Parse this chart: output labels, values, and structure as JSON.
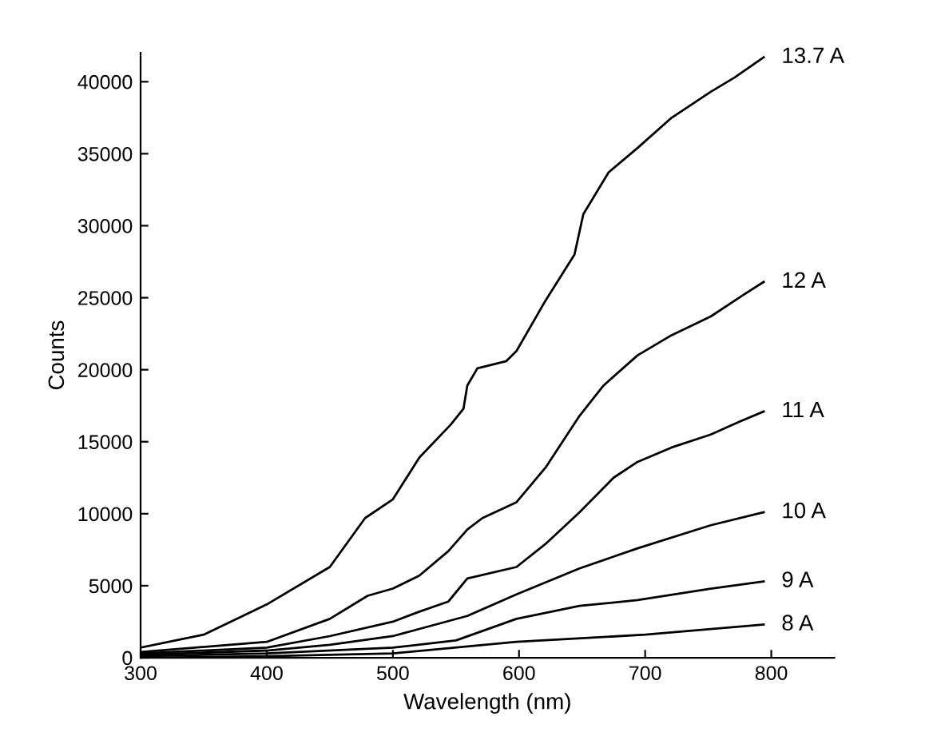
{
  "chart_data": {
    "type": "line",
    "xlabel": "Wavelength (nm)",
    "ylabel": "Counts",
    "xlim": [
      300,
      850
    ],
    "xticks": [
      300,
      400,
      500,
      600,
      700,
      800
    ],
    "ylim": [
      0,
      42000
    ],
    "yticks": [
      0,
      5000,
      10000,
      15000,
      20000,
      25000,
      30000,
      35000,
      40000
    ],
    "grid": false,
    "legend": false,
    "marker": "none",
    "line_style": "solid",
    "series": [
      {
        "name": "13.7 A",
        "color": "#000000",
        "x": [
          300,
          350,
          400,
          450,
          478,
          500,
          521,
          546,
          556,
          559,
          567,
          590,
          598,
          621,
          644,
          651,
          671,
          694,
          721,
          752,
          771,
          794
        ],
        "values": [
          700,
          1600,
          3700,
          6300,
          9700,
          11000,
          13900,
          16200,
          17300,
          18900,
          20100,
          20600,
          21300,
          24800,
          28000,
          30800,
          33700,
          35400,
          37500,
          39300,
          40300,
          41700
        ]
      },
      {
        "name": "12 A",
        "color": "#000000",
        "x": [
          300,
          400,
          450,
          480,
          500,
          521,
          544,
          559,
          571,
          598,
          621,
          648,
          667,
          694,
          721,
          752,
          778,
          794
        ],
        "values": [
          400,
          1100,
          2700,
          4300,
          4800,
          5700,
          7400,
          8900,
          9700,
          10800,
          13200,
          16800,
          18900,
          21000,
          22400,
          23700,
          25200,
          26100
        ]
      },
      {
        "name": "11 A",
        "color": "#000000",
        "x": [
          300,
          400,
          450,
          500,
          521,
          544,
          559,
          598,
          621,
          648,
          675,
          694,
          721,
          752,
          775,
          794
        ],
        "values": [
          300,
          700,
          1500,
          2500,
          3200,
          3900,
          5500,
          6300,
          7900,
          10100,
          12500,
          13600,
          14600,
          15500,
          16400,
          17100
        ]
      },
      {
        "name": "10 A",
        "color": "#000000",
        "x": [
          300,
          400,
          450,
          500,
          521,
          559,
          598,
          648,
          694,
          752,
          794
        ],
        "values": [
          200,
          500,
          900,
          1500,
          2000,
          2900,
          4400,
          6200,
          7600,
          9200,
          10100
        ]
      },
      {
        "name": "9 A",
        "color": "#000000",
        "x": [
          300,
          400,
          500,
          550,
          598,
          648,
          694,
          752,
          794
        ],
        "values": [
          100,
          300,
          700,
          1200,
          2700,
          3600,
          4000,
          4800,
          5300
        ]
      },
      {
        "name": "8 A",
        "color": "#000000",
        "x": [
          300,
          400,
          500,
          598,
          700,
          794
        ],
        "values": [
          0,
          100,
          300,
          1100,
          1600,
          2300
        ]
      }
    ]
  }
}
